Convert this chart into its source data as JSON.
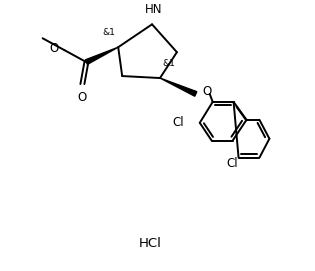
{
  "background_color": "#ffffff",
  "line_color": "#000000",
  "line_width": 1.4,
  "font_size": 8.5,
  "hcl_font_size": 9.5,
  "stereo_font_size": 6.5,
  "figure_width": 3.15,
  "figure_height": 2.71,
  "dpi": 100,
  "hcl_label": "HCl",
  "hn_label": "HN",
  "stereo1_label": "&1",
  "stereo2_label": "&1",
  "o_label": "O",
  "cl1_label": "Cl",
  "cl2_label": "Cl"
}
